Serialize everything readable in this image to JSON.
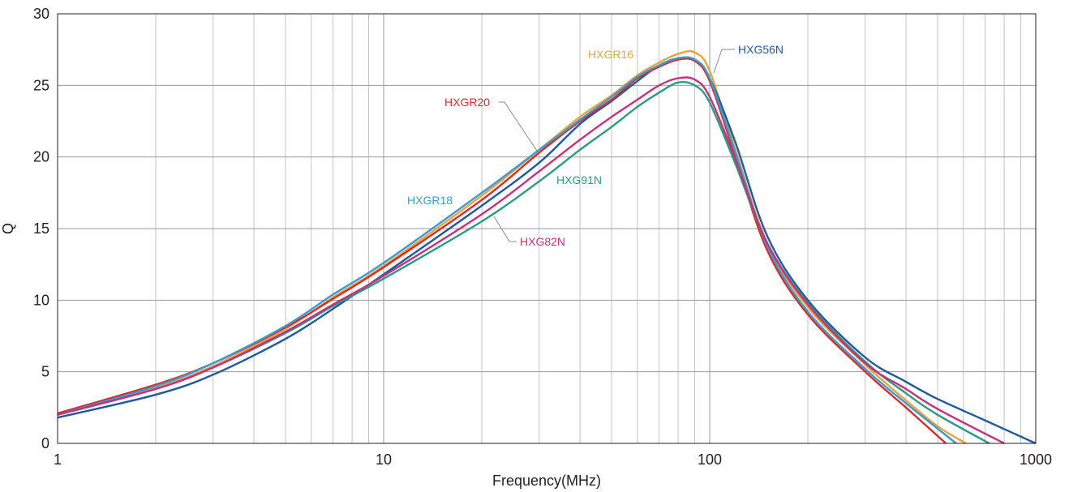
{
  "chart_data": {
    "type": "line",
    "title": "",
    "xlabel": "Frequency(MHz)",
    "ylabel": "Q",
    "x_scale": "log",
    "xlim": [
      1,
      1000
    ],
    "ylim": [
      0,
      30
    ],
    "grid": true,
    "legend": "inline-labels",
    "x_tick_labels": [
      "1",
      "10",
      "100",
      "1000"
    ],
    "y_tick_labels": [
      "0",
      "5",
      "10",
      "15",
      "20",
      "25",
      "30"
    ],
    "series": [
      {
        "name": "HXGR16",
        "color": "#e8a33a",
        "points": [
          [
            1,
            2.1
          ],
          [
            2,
            3.9
          ],
          [
            3,
            5.4
          ],
          [
            5,
            8.0
          ],
          [
            7,
            10.2
          ],
          [
            10,
            12.4
          ],
          [
            20,
            17.3
          ],
          [
            30,
            20.5
          ],
          [
            40,
            22.8
          ],
          [
            50,
            24.3
          ],
          [
            60,
            25.7
          ],
          [
            70,
            26.6
          ],
          [
            80,
            27.2
          ],
          [
            90,
            27.3
          ],
          [
            100,
            26.0
          ],
          [
            120,
            20.5
          ],
          [
            150,
            14.0
          ],
          [
            200,
            9.5
          ],
          [
            300,
            5.5
          ],
          [
            400,
            3.0
          ],
          [
            500,
            1.2
          ],
          [
            610,
            0
          ]
        ]
      },
      {
        "name": "HXG56N",
        "color": "#1f5a9c",
        "points": [
          [
            1,
            1.8
          ],
          [
            2,
            3.4
          ],
          [
            3,
            4.8
          ],
          [
            5,
            7.3
          ],
          [
            7,
            9.4
          ],
          [
            10,
            11.8
          ],
          [
            20,
            16.6
          ],
          [
            30,
            19.6
          ],
          [
            40,
            22.3
          ],
          [
            50,
            23.9
          ],
          [
            60,
            25.3
          ],
          [
            70,
            26.4
          ],
          [
            80,
            26.9
          ],
          [
            90,
            26.8
          ],
          [
            100,
            25.5
          ],
          [
            120,
            21.0
          ],
          [
            150,
            14.5
          ],
          [
            200,
            10.0
          ],
          [
            300,
            6.0
          ],
          [
            400,
            4.3
          ],
          [
            500,
            3.1
          ],
          [
            700,
            1.6
          ],
          [
            1000,
            0
          ]
        ]
      },
      {
        "name": "HXGR20",
        "color": "#d42e2c",
        "points": [
          [
            1,
            2.1
          ],
          [
            2,
            4.1
          ],
          [
            3,
            5.6
          ],
          [
            5,
            8.1
          ],
          [
            7,
            10.1
          ],
          [
            10,
            12.3
          ],
          [
            20,
            17.0
          ],
          [
            30,
            20.3
          ],
          [
            40,
            22.5
          ],
          [
            50,
            24.0
          ],
          [
            60,
            25.5
          ],
          [
            70,
            26.3
          ],
          [
            80,
            26.8
          ],
          [
            90,
            26.7
          ],
          [
            100,
            25.3
          ],
          [
            120,
            20.0
          ],
          [
            150,
            13.5
          ],
          [
            200,
            9.0
          ],
          [
            300,
            5.0
          ],
          [
            400,
            2.5
          ],
          [
            530,
            0
          ]
        ]
      },
      {
        "name": "HXGR18",
        "color": "#3a9ad3",
        "points": [
          [
            1,
            2.0
          ],
          [
            2,
            4.0
          ],
          [
            3,
            5.6
          ],
          [
            5,
            8.2
          ],
          [
            7,
            10.4
          ],
          [
            10,
            12.6
          ],
          [
            20,
            17.5
          ],
          [
            30,
            20.5
          ],
          [
            40,
            22.6
          ],
          [
            50,
            24.2
          ],
          [
            60,
            25.6
          ],
          [
            70,
            26.4
          ],
          [
            80,
            26.9
          ],
          [
            90,
            26.8
          ],
          [
            100,
            25.5
          ],
          [
            120,
            20.3
          ],
          [
            150,
            13.8
          ],
          [
            200,
            9.2
          ],
          [
            300,
            5.2
          ],
          [
            400,
            2.8
          ],
          [
            570,
            0
          ]
        ]
      },
      {
        "name": "HXG91N",
        "color": "#2a9b84",
        "points": [
          [
            1,
            2.0
          ],
          [
            2,
            3.8
          ],
          [
            3,
            5.3
          ],
          [
            5,
            7.7
          ],
          [
            7,
            9.6
          ],
          [
            10,
            11.5
          ],
          [
            20,
            15.5
          ],
          [
            30,
            18.3
          ],
          [
            40,
            20.5
          ],
          [
            50,
            22.1
          ],
          [
            60,
            23.5
          ],
          [
            70,
            24.5
          ],
          [
            80,
            25.2
          ],
          [
            90,
            25.0
          ],
          [
            100,
            23.8
          ],
          [
            120,
            19.5
          ],
          [
            150,
            14.0
          ],
          [
            200,
            9.8
          ],
          [
            300,
            5.7
          ],
          [
            400,
            3.5
          ],
          [
            500,
            2.0
          ],
          [
            720,
            0
          ]
        ]
      },
      {
        "name": "HXG82N",
        "color": "#c4327e",
        "points": [
          [
            1,
            2.0
          ],
          [
            2,
            3.8
          ],
          [
            3,
            5.3
          ],
          [
            5,
            7.8
          ],
          [
            7,
            9.7
          ],
          [
            10,
            11.7
          ],
          [
            20,
            16.0
          ],
          [
            30,
            19.0
          ],
          [
            40,
            21.2
          ],
          [
            50,
            22.8
          ],
          [
            60,
            24.0
          ],
          [
            70,
            25.0
          ],
          [
            80,
            25.5
          ],
          [
            90,
            25.4
          ],
          [
            100,
            24.2
          ],
          [
            120,
            19.8
          ],
          [
            150,
            14.0
          ],
          [
            200,
            9.7
          ],
          [
            300,
            5.6
          ],
          [
            400,
            3.8
          ],
          [
            500,
            2.4
          ],
          [
            800,
            0
          ]
        ]
      }
    ],
    "annotations": [
      {
        "text": "HXGR16",
        "series": "HXGR16"
      },
      {
        "text": "HXG56N",
        "series": "HXG56N"
      },
      {
        "text": "HXGR20",
        "series": "HXGR20"
      },
      {
        "text": "HXGR18",
        "series": "HXGR18"
      },
      {
        "text": "HXG91N",
        "series": "HXG91N"
      },
      {
        "text": "HXG82N",
        "series": "HXG82N"
      }
    ]
  }
}
